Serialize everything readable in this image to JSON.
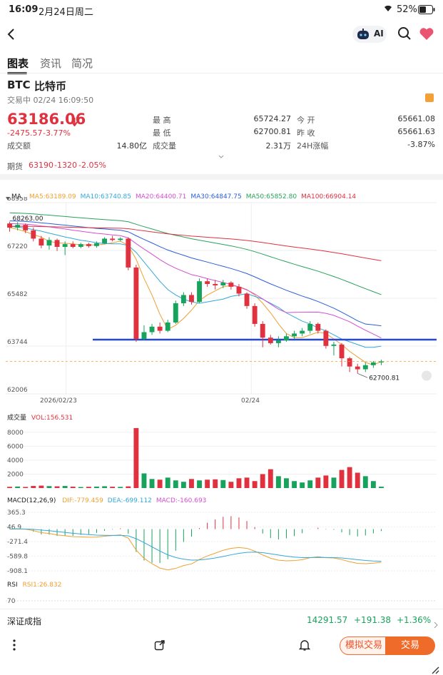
{
  "status_bar": {
    "time": "16:09",
    "date": "2月24日周二",
    "battery": "52%"
  },
  "topbar": {
    "ai_label": "AI"
  },
  "tabs": [
    {
      "label": "图表",
      "active": true
    },
    {
      "label": "资讯",
      "active": false
    },
    {
      "label": "简况",
      "active": false
    }
  ],
  "quote": {
    "symbol": "BTC",
    "name": "比特币",
    "status_line": "交易中 02/24 16:09:50",
    "price": "63186.06",
    "change": "-2475.57",
    "change_pct": "-3.77%",
    "turnover_label": "成交额",
    "turnover_value": "14.80亿",
    "stats": [
      {
        "label": "最 高",
        "value": "65724.27",
        "color": "#17a35b"
      },
      {
        "label": "最 低",
        "value": "62700.81",
        "color": "#e0313e"
      },
      {
        "label": "成交量",
        "value": "2.31万",
        "color": "#333333"
      }
    ],
    "stats_right": [
      {
        "label": "今 开",
        "value": "65661.08",
        "color": "#e0313e"
      },
      {
        "label": "昨 收",
        "value": "65661.63",
        "color": "#333333"
      },
      {
        "label": "24H涨幅",
        "value": "-3.87%",
        "color": "#e0313e"
      }
    ],
    "futures": {
      "label": "期货",
      "price": "63190",
      "change": "-1320",
      "pct": "-2.05%"
    }
  },
  "ma_legend": {
    "title": "MA",
    "items": [
      {
        "text": "MA5:63189.09",
        "color": "#f0a030"
      },
      {
        "text": "MA10:63740.85",
        "color": "#34a8d8"
      },
      {
        "text": "MA20:64400.71",
        "color": "#d44fd0"
      },
      {
        "text": "MA30:64847.75",
        "color": "#2b5fd9"
      },
      {
        "text": "MA50:65852.80",
        "color": "#29a25a"
      },
      {
        "text": "MA100:66904.14",
        "color": "#e0313e"
      }
    ]
  },
  "chart_data": [
    {
      "type": "candlestick",
      "title": "",
      "y_ticks": [
        "68958",
        "67220",
        "65482",
        "63744",
        "62006"
      ],
      "x_ticks": [
        "2026/02/23",
        "02/24"
      ],
      "ylim": [
        62006,
        68958
      ],
      "annotations": [
        {
          "text": "68263.00",
          "kind": "high"
        },
        {
          "text": "62700.81",
          "kind": "low"
        }
      ],
      "support_line": 63977,
      "candles": [
        {
          "o": 68200,
          "c": 68050,
          "h": 68263,
          "l": 67900
        },
        {
          "o": 68050,
          "c": 68150,
          "h": 68250,
          "l": 67950
        },
        {
          "o": 68150,
          "c": 67950,
          "h": 68200,
          "l": 67850
        },
        {
          "o": 67950,
          "c": 67650,
          "h": 68050,
          "l": 67550
        },
        {
          "o": 67650,
          "c": 67400,
          "h": 67750,
          "l": 67300
        },
        {
          "o": 67400,
          "c": 67600,
          "h": 67700,
          "l": 67250
        },
        {
          "o": 67600,
          "c": 67350,
          "h": 67650,
          "l": 67200
        },
        {
          "o": 67350,
          "c": 67450,
          "h": 67550,
          "l": 67050
        },
        {
          "o": 67450,
          "c": 67350,
          "h": 67550,
          "l": 67300
        },
        {
          "o": 67350,
          "c": 67450,
          "h": 67500,
          "l": 67300
        },
        {
          "o": 67450,
          "c": 67380,
          "h": 67500,
          "l": 67320
        },
        {
          "o": 67380,
          "c": 67480,
          "h": 67550,
          "l": 67320
        },
        {
          "o": 67480,
          "c": 67650,
          "h": 67700,
          "l": 67450
        },
        {
          "o": 67650,
          "c": 67600,
          "h": 67750,
          "l": 67550
        },
        {
          "o": 67600,
          "c": 67650,
          "h": 67700,
          "l": 67550
        },
        {
          "o": 67650,
          "c": 66600,
          "h": 67700,
          "l": 66500
        },
        {
          "o": 66600,
          "c": 64000,
          "h": 66700,
          "l": 63900
        },
        {
          "o": 64000,
          "c": 64250,
          "h": 64500,
          "l": 63950
        },
        {
          "o": 64250,
          "c": 64450,
          "h": 64550,
          "l": 64150
        },
        {
          "o": 64450,
          "c": 64300,
          "h": 64600,
          "l": 64200
        },
        {
          "o": 64300,
          "c": 64600,
          "h": 64700,
          "l": 64250
        },
        {
          "o": 64600,
          "c": 65300,
          "h": 65400,
          "l": 64550
        },
        {
          "o": 65300,
          "c": 65600,
          "h": 65700,
          "l": 65200
        },
        {
          "o": 65600,
          "c": 65350,
          "h": 65700,
          "l": 65250
        },
        {
          "o": 65350,
          "c": 66100,
          "h": 66200,
          "l": 65300
        },
        {
          "o": 66100,
          "c": 66000,
          "h": 66200,
          "l": 65900
        },
        {
          "o": 66000,
          "c": 65950,
          "h": 66150,
          "l": 65800
        },
        {
          "o": 65950,
          "c": 66050,
          "h": 66150,
          "l": 65850
        },
        {
          "o": 66050,
          "c": 65900,
          "h": 66100,
          "l": 65800
        },
        {
          "o": 65900,
          "c": 65650,
          "h": 66000,
          "l": 65550
        },
        {
          "o": 65650,
          "c": 65200,
          "h": 65700,
          "l": 65100
        },
        {
          "o": 65200,
          "c": 64550,
          "h": 65300,
          "l": 64450
        },
        {
          "o": 64550,
          "c": 64050,
          "h": 64650,
          "l": 63700
        },
        {
          "o": 64050,
          "c": 63850,
          "h": 64150,
          "l": 63800
        },
        {
          "o": 63850,
          "c": 63950,
          "h": 64100,
          "l": 63700
        },
        {
          "o": 63950,
          "c": 64100,
          "h": 64200,
          "l": 63900
        },
        {
          "o": 64100,
          "c": 64200,
          "h": 64300,
          "l": 64000
        },
        {
          "o": 64200,
          "c": 64300,
          "h": 64400,
          "l": 64100
        },
        {
          "o": 64300,
          "c": 64550,
          "h": 64650,
          "l": 64200
        },
        {
          "o": 64550,
          "c": 64300,
          "h": 64600,
          "l": 64200
        },
        {
          "o": 64300,
          "c": 63750,
          "h": 64350,
          "l": 63650
        },
        {
          "o": 63750,
          "c": 63800,
          "h": 63900,
          "l": 63400
        },
        {
          "o": 63800,
          "c": 63300,
          "h": 63850,
          "l": 63000
        },
        {
          "o": 63300,
          "c": 63000,
          "h": 63350,
          "l": 62800
        },
        {
          "o": 63000,
          "c": 62900,
          "h": 63100,
          "l": 62750
        },
        {
          "o": 62900,
          "c": 63050,
          "h": 63150,
          "l": 62800
        },
        {
          "o": 63050,
          "c": 63150,
          "h": 63200,
          "l": 62950
        },
        {
          "o": 63150,
          "c": 63186,
          "h": 63250,
          "l": 63050
        }
      ],
      "ma_series": {
        "MA5": [
          68050,
          67990,
          67900,
          67800,
          67700,
          67550,
          67500,
          67480,
          67460,
          67420,
          67420,
          67420,
          67450,
          67500,
          67560,
          67400,
          66900,
          66200,
          65600,
          64900,
          64350,
          64500,
          64750,
          65050,
          65400,
          65600,
          65750,
          65900,
          65950,
          65900,
          65800,
          65600,
          65300,
          64950,
          64550,
          64200,
          64050,
          64050,
          64150,
          64250,
          64200,
          64000,
          63800,
          63550,
          63350,
          63150,
          63050,
          63189
        ],
        "MA10": [
          68100,
          68070,
          68030,
          67980,
          67920,
          67850,
          67780,
          67710,
          67650,
          67590,
          67550,
          67500,
          67470,
          67460,
          67460,
          67400,
          67150,
          66800,
          66450,
          66100,
          65800,
          65600,
          65450,
          65350,
          65300,
          65350,
          65400,
          65450,
          65550,
          65600,
          65650,
          65550,
          65450,
          65300,
          65150,
          64950,
          64800,
          64650,
          64550,
          64400,
          64300,
          64150,
          64000,
          63900,
          63800,
          63700,
          63700,
          63740
        ]
      }
    },
    {
      "type": "bar",
      "title": "成交量",
      "legend": "VOL:156.531",
      "y_ticks": [
        "8000",
        "6000",
        "4000",
        "2000"
      ],
      "ylim": [
        0,
        9000
      ],
      "values": [
        180,
        220,
        160,
        300,
        350,
        280,
        250,
        300,
        200,
        150,
        180,
        210,
        260,
        190,
        170,
        240,
        8600,
        2100,
        1300,
        1200,
        1500,
        1100,
        900,
        1300,
        1100,
        1200,
        1250,
        1150,
        900,
        1400,
        1500,
        1000,
        2000,
        2700,
        1700,
        1400,
        1000,
        800,
        1100,
        1500,
        1800,
        1500,
        2600,
        3000,
        2200,
        1700,
        1000,
        200
      ]
    },
    {
      "type": "histogram_lines",
      "title": "MACD(12,26,9)",
      "legend": [
        {
          "text": "DIF:-779.459",
          "color": "#f0a030"
        },
        {
          "text": "DEA:-699.112",
          "color": "#34a8d8"
        },
        {
          "text": "MACD:-160.693",
          "color": "#d44fd0"
        }
      ],
      "y_ticks": [
        "365.3",
        "46.9",
        "-271.4",
        "-589.8",
        "-908.1"
      ],
      "ylim": [
        -908.1,
        365.3
      ]
    },
    {
      "type": "line",
      "title": "RSI",
      "legend": "RSI1:26.832",
      "y_ticks": [
        "70"
      ]
    }
  ],
  "index_bar": {
    "name": "深证成指",
    "value": "14291.57",
    "change": "+191.38",
    "pct": "+1.36%"
  },
  "bottom": {
    "sim_trade": "模拟交易",
    "trade": "交易"
  }
}
